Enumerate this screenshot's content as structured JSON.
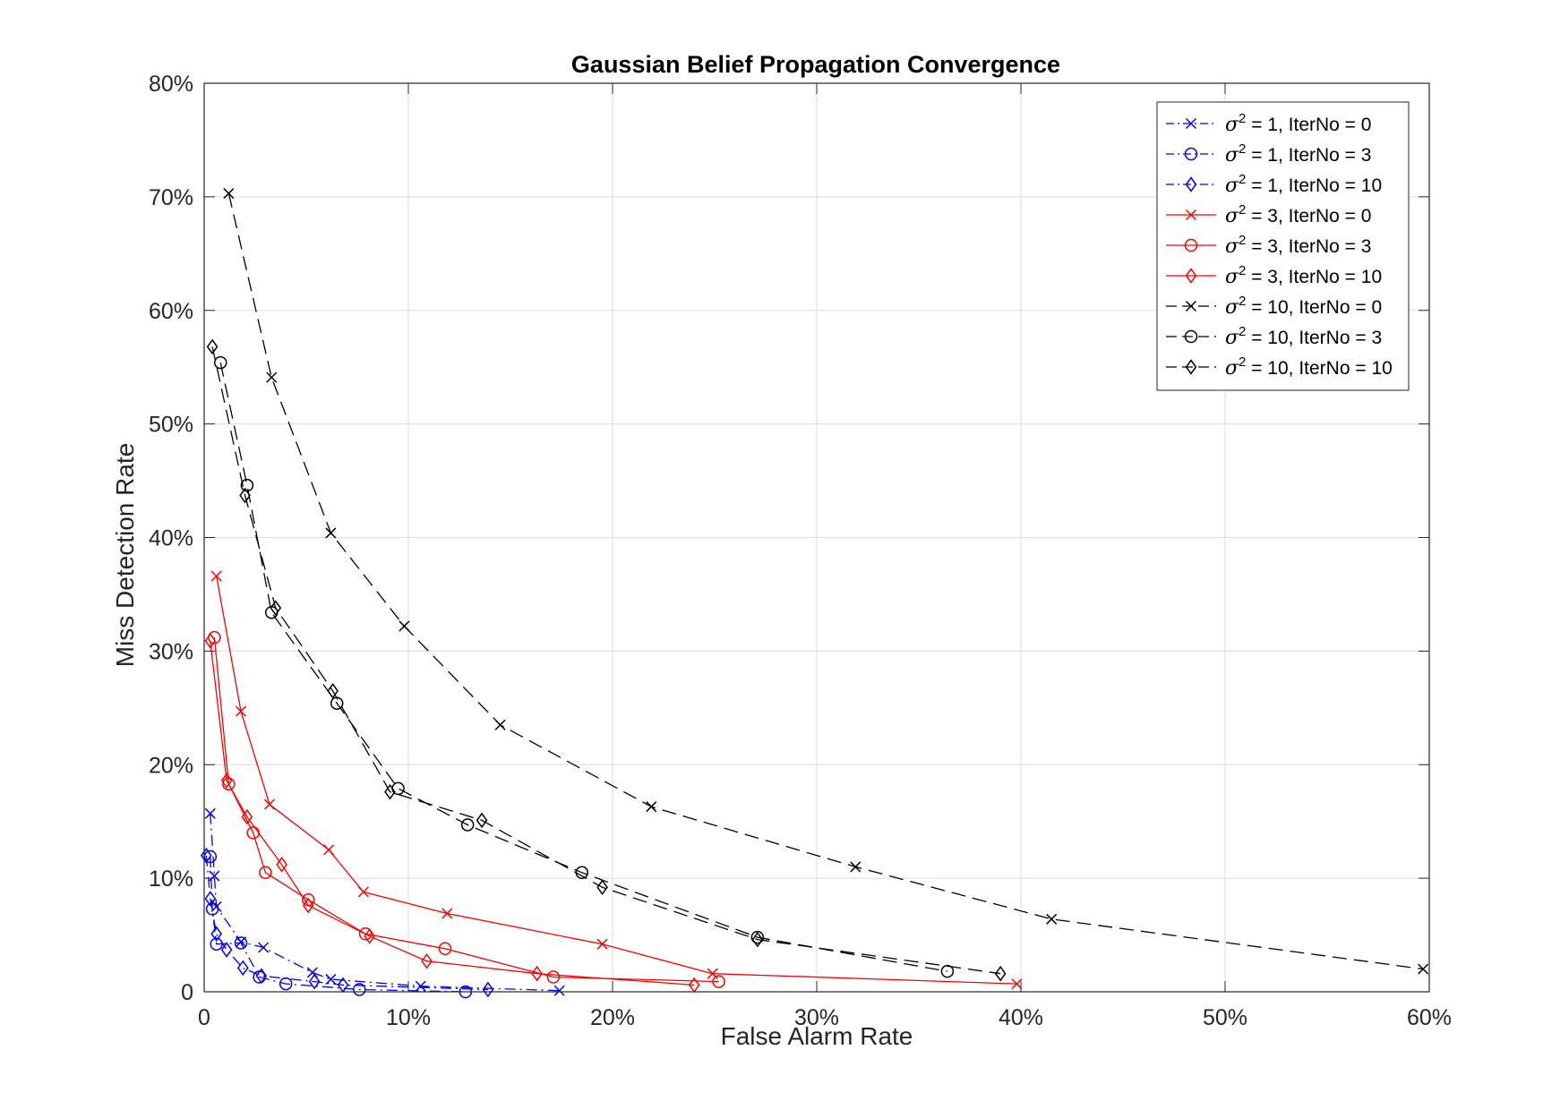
{
  "chart_data": {
    "type": "line",
    "title": "Gaussian Belief Propagation Convergence",
    "xlabel": "False Alarm Rate",
    "ylabel": "Miss Detection Rate",
    "xlim": [
      0,
      60
    ],
    "ylim": [
      0,
      80
    ],
    "xticks": [
      0,
      10,
      20,
      30,
      40,
      50,
      60
    ],
    "yticks": [
      0,
      10,
      20,
      30,
      40,
      50,
      60,
      70,
      80
    ],
    "xtick_labels": [
      "0",
      "10%",
      "20%",
      "30%",
      "40%",
      "50%",
      "60%"
    ],
    "ytick_labels": [
      "0",
      "10%",
      "20%",
      "30%",
      "40%",
      "50%",
      "60%",
      "70%",
      "80%"
    ],
    "grid": true,
    "legend_position": "top-right",
    "series": [
      {
        "name": "σ2 = 1, IterNo = 0",
        "legend_symbol": "σ",
        "legend_sup": "2",
        "legend_rest": " = 1, IterNo = 0",
        "color": "#0000ff",
        "marker": "x",
        "line": "dashdot",
        "points": [
          [
            0.3,
            15.7
          ],
          [
            0.5,
            10.2
          ],
          [
            0.6,
            7.5
          ],
          [
            1.8,
            4.4
          ],
          [
            2.9,
            3.9
          ],
          [
            5.3,
            1.7
          ],
          [
            6.2,
            1.1
          ],
          [
            10.6,
            0.5
          ],
          [
            17.4,
            0.1
          ]
        ]
      },
      {
        "name": "σ2 = 1, IterNo = 3",
        "legend_symbol": "σ",
        "legend_sup": "2",
        "legend_rest": " = 1, IterNo = 3",
        "color": "#0000ff",
        "marker": "o",
        "line": "dashdot",
        "points": [
          [
            0.3,
            11.9
          ],
          [
            0.4,
            7.3
          ],
          [
            0.6,
            4.2
          ],
          [
            1.8,
            4.3
          ],
          [
            2.7,
            1.3
          ],
          [
            4.0,
            0.7
          ],
          [
            7.6,
            0.2
          ],
          [
            12.8,
            0.0
          ]
        ]
      },
      {
        "name": "σ2 = 1, IterNo = 10",
        "legend_symbol": "σ",
        "legend_sup": "2",
        "legend_rest": " = 1, IterNo = 10",
        "color": "#0000ff",
        "marker": "diamond",
        "line": "dashdot",
        "points": [
          [
            0.1,
            12.0
          ],
          [
            0.3,
            8.2
          ],
          [
            0.6,
            5.1
          ],
          [
            1.1,
            3.7
          ],
          [
            1.9,
            2.1
          ],
          [
            2.8,
            1.4
          ],
          [
            5.4,
            0.9
          ],
          [
            6.8,
            0.6
          ],
          [
            13.9,
            0.2
          ]
        ]
      },
      {
        "name": "σ2 = 3, IterNo = 0",
        "legend_symbol": "σ",
        "legend_sup": "2",
        "legend_rest": " = 3, IterNo = 0",
        "color": "#ff0000",
        "marker": "x",
        "line": "solid",
        "points": [
          [
            0.6,
            36.6
          ],
          [
            1.8,
            24.7
          ],
          [
            3.2,
            16.5
          ],
          [
            6.1,
            12.5
          ],
          [
            7.8,
            8.8
          ],
          [
            11.9,
            6.9
          ],
          [
            19.5,
            4.2
          ],
          [
            24.9,
            1.6
          ],
          [
            39.8,
            0.7
          ]
        ]
      },
      {
        "name": "σ2 = 3, IterNo = 3",
        "legend_symbol": "σ",
        "legend_sup": "2",
        "legend_rest": " = 3, IterNo = 3",
        "color": "#ff0000",
        "marker": "o",
        "line": "solid",
        "points": [
          [
            0.5,
            31.2
          ],
          [
            1.2,
            18.3
          ],
          [
            2.4,
            14.0
          ],
          [
            3.0,
            10.5
          ],
          [
            5.1,
            8.1
          ],
          [
            7.9,
            5.1
          ],
          [
            11.8,
            3.8
          ],
          [
            17.1,
            1.3
          ],
          [
            25.2,
            0.9
          ]
        ]
      },
      {
        "name": "σ2 = 3, IterNo = 10",
        "legend_symbol": "σ",
        "legend_sup": "2",
        "legend_rest": " = 3, IterNo = 10",
        "color": "#ff0000",
        "marker": "diamond",
        "line": "solid",
        "points": [
          [
            0.3,
            30.9
          ],
          [
            1.1,
            18.6
          ],
          [
            2.1,
            15.4
          ],
          [
            3.8,
            11.2
          ],
          [
            5.1,
            7.6
          ],
          [
            8.1,
            4.9
          ],
          [
            10.9,
            2.7
          ],
          [
            16.3,
            1.6
          ],
          [
            24.0,
            0.6
          ]
        ]
      },
      {
        "name": "σ2 = 10, IterNo = 0",
        "legend_symbol": "σ",
        "legend_sup": "2",
        "legend_rest": " = 10, IterNo = 0",
        "color": "#000000",
        "marker": "x",
        "line": "dashed",
        "points": [
          [
            1.2,
            70.3
          ],
          [
            3.3,
            54.1
          ],
          [
            6.2,
            40.4
          ],
          [
            9.8,
            32.2
          ],
          [
            14.5,
            23.5
          ],
          [
            21.9,
            16.3
          ],
          [
            31.9,
            11.0
          ],
          [
            41.5,
            6.4
          ],
          [
            59.7,
            2.0
          ]
        ]
      },
      {
        "name": "σ2 = 10, IterNo = 3",
        "legend_symbol": "σ",
        "legend_sup": "2",
        "legend_rest": " = 10, IterNo = 3",
        "color": "#000000",
        "marker": "o",
        "line": "dashed",
        "points": [
          [
            0.8,
            55.4
          ],
          [
            2.1,
            44.6
          ],
          [
            3.3,
            33.4
          ],
          [
            6.5,
            25.4
          ],
          [
            9.5,
            17.9
          ],
          [
            12.9,
            14.7
          ],
          [
            18.5,
            10.5
          ],
          [
            27.1,
            4.8
          ],
          [
            36.4,
            1.8
          ]
        ]
      },
      {
        "name": "σ2 = 10, IterNo = 10",
        "legend_symbol": "σ",
        "legend_sup": "2",
        "legend_rest": " = 10, IterNo = 10",
        "color": "#000000",
        "marker": "diamond",
        "line": "dashed",
        "points": [
          [
            0.4,
            56.8
          ],
          [
            2.0,
            43.7
          ],
          [
            3.5,
            33.8
          ],
          [
            6.3,
            26.5
          ],
          [
            9.1,
            17.6
          ],
          [
            13.6,
            15.1
          ],
          [
            19.5,
            9.2
          ],
          [
            27.1,
            4.6
          ],
          [
            39.0,
            1.6
          ]
        ]
      }
    ]
  }
}
